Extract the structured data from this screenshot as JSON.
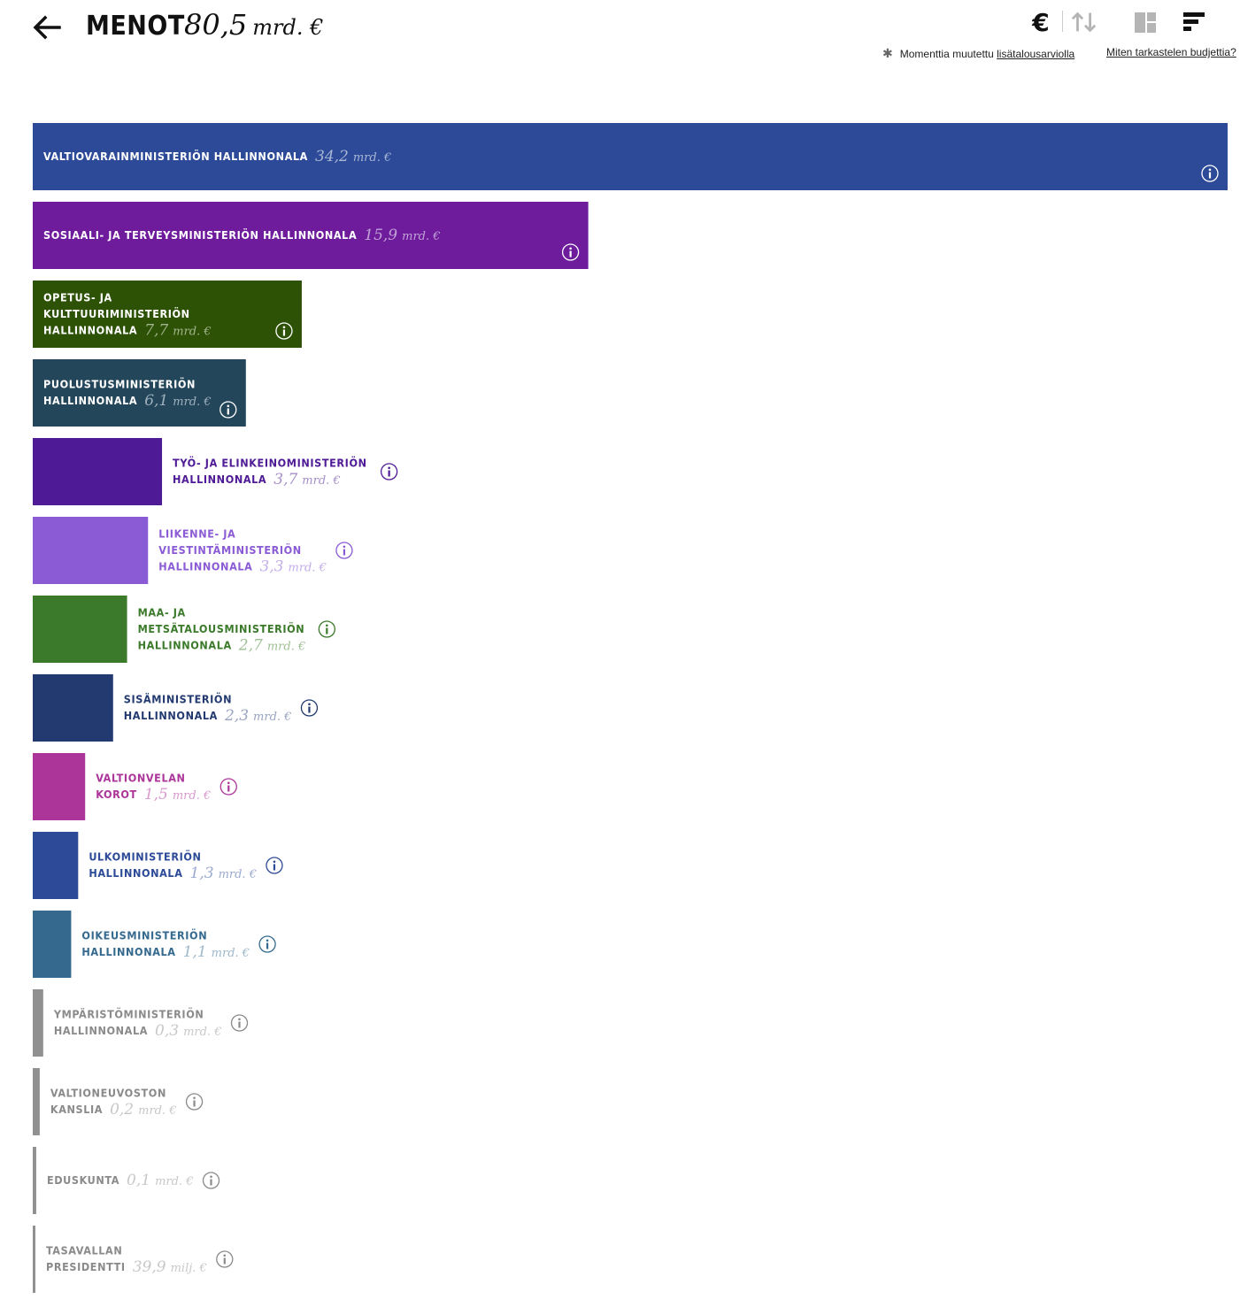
{
  "header": {
    "title": "MENOT",
    "total_value": "80,5",
    "total_unit": "mrd. €",
    "currency_symbol": "€",
    "note_prefix": "Momenttia muutettu",
    "note_link": "lisätalousarviolla",
    "help_link": "Miten tarkastelen budjettia?",
    "icons": [
      "back-arrow-icon",
      "euro-icon",
      "sort-icon",
      "treemap-icon",
      "bar-list-icon"
    ]
  },
  "chart_data": {
    "type": "bar",
    "orientation": "horizontal",
    "unit": "mrd. €",
    "categories": [
      "VALTIOVARAINMINISTERIÖN HALLINNONALA",
      "SOSIAALI- JA TERVEYSMINISTERIÖN HALLINNONALA",
      "OPETUS- JA KULTTUURIMINISTERIÖN HALLINNONALA",
      "PUOLUSTUSMINISTERIÖN HALLINNONALA",
      "TYÖ- JA ELINKEINOMINISTERIÖN HALLINNONALA",
      "LIIKENNE- JA VIESTINTÄMINISTERIÖN HALLINNONALA",
      "MAA- JA METSÄTALOUSMINISTERIÖN HALLINNONALA",
      "SISÄMINISTERIÖN HALLINNONALA",
      "VALTIONVELAN KOROT",
      "ULKOMINISTERIÖN HALLINNONALA",
      "OIKEUSMINISTERIÖN HALLINNONALA",
      "YMPÄRISTÖMINISTERIÖN HALLINNONALA",
      "VALTIONEUVOSTON KANSLIA",
      "EDUSKUNTA",
      "TASAVALLAN PRESIDENTTI"
    ],
    "values": [
      34.2,
      15.9,
      7.7,
      6.1,
      3.7,
      3.3,
      2.7,
      2.3,
      1.5,
      1.3,
      1.1,
      0.3,
      0.2,
      0.1,
      0.0399
    ],
    "bars": [
      {
        "label_lines": [
          "VALTIOVARAINMINISTERIÖN HALLINNONALA"
        ],
        "value_text": "34,2",
        "unit_text": "mrd. €",
        "color": "#2c4a97",
        "text_color": "#ffffff",
        "value_color": "#a9b6d6",
        "label_inside": true
      },
      {
        "label_lines": [
          "SOSIAALI- JA TERVEYSMINISTERIÖN HALLINNONALA"
        ],
        "value_text": "15,9",
        "unit_text": "mrd. €",
        "color": "#6e1b9c",
        "text_color": "#ffffff",
        "value_color": "#c1a3d6",
        "label_inside": true
      },
      {
        "label_lines": [
          "OPETUS- JA",
          "KULTTUURIMINISTERIÖN",
          "HALLINNONALA"
        ],
        "value_text": "7,7",
        "unit_text": "mrd. €",
        "color": "#2d5206",
        "text_color": "#ffffff",
        "value_color": "#a2b58c",
        "label_inside": true
      },
      {
        "label_lines": [
          "PUOLUSTUSMINISTERIÖN",
          "HALLINNONALA"
        ],
        "value_text": "6,1",
        "unit_text": "mrd. €",
        "color": "#23465a",
        "text_color": "#ffffff",
        "value_color": "#9fb0bd",
        "label_inside": true
      },
      {
        "label_lines": [
          "TYÖ- JA ELINKEINOMINISTERIÖN",
          "HALLINNONALA"
        ],
        "value_text": "3,7",
        "unit_text": "mrd. €",
        "color": "#4f1a96",
        "text_color": "#4f1a96",
        "value_color": "#a68fc7",
        "label_inside": false
      },
      {
        "label_lines": [
          "LIIKENNE- JA",
          "VIESTINTÄMINISTERIÖN",
          "HALLINNONALA"
        ],
        "value_text": "3,3",
        "unit_text": "mrd. €",
        "color": "#8b5bd6",
        "text_color": "#8b5bd6",
        "value_color": "#c3aee9",
        "label_inside": false
      },
      {
        "label_lines": [
          "MAA- JA",
          "METSÄTALOUSMINISTERIÖN",
          "HALLINNONALA"
        ],
        "value_text": "2,7",
        "unit_text": "mrd. €",
        "color": "#3b7a2a",
        "text_color": "#3b7a2a",
        "value_color": "#9fc096",
        "label_inside": false
      },
      {
        "label_lines": [
          "SISÄMINISTERIÖN",
          "HALLINNONALA"
        ],
        "value_text": "2,3",
        "unit_text": "mrd. €",
        "color": "#233a70",
        "text_color": "#233a70",
        "value_color": "#9aa5c0",
        "label_inside": false
      },
      {
        "label_lines": [
          "VALTIONVELAN",
          "KOROT"
        ],
        "value_text": "1,5",
        "unit_text": "mrd. €",
        "color": "#ab3599",
        "text_color": "#ab3599",
        "value_color": "#d99acd",
        "label_inside": false
      },
      {
        "label_lines": [
          "ULKOMINISTERIÖN",
          "HALLINNONALA"
        ],
        "value_text": "1,3",
        "unit_text": "mrd. €",
        "color": "#2c4a97",
        "text_color": "#2c4a97",
        "value_color": "#9aaad0",
        "label_inside": false
      },
      {
        "label_lines": [
          "OIKEUSMINISTERIÖN",
          "HALLINNONALA"
        ],
        "value_text": "1,1",
        "unit_text": "mrd. €",
        "color": "#356a8e",
        "text_color": "#356a8e",
        "value_color": "#9db8ca",
        "label_inside": false
      },
      {
        "label_lines": [
          "YMPÄRISTÖMINISTERIÖN",
          "HALLINNONALA"
        ],
        "value_text": "0,3",
        "unit_text": "mrd. €",
        "color": "#909090",
        "text_color": "#8a8a8a",
        "value_color": "#c8c8c8",
        "label_inside": false
      },
      {
        "label_lines": [
          "VALTIONEUVOSTON",
          "KANSLIA"
        ],
        "value_text": "0,2",
        "unit_text": "mrd. €",
        "color": "#909090",
        "text_color": "#8a8a8a",
        "value_color": "#c8c8c8",
        "label_inside": false
      },
      {
        "label_lines": [
          "EDUSKUNTA"
        ],
        "value_text": "0,1",
        "unit_text": "mrd. €",
        "color": "#909090",
        "text_color": "#8a8a8a",
        "value_color": "#c8c8c8",
        "label_inside": false
      },
      {
        "label_lines": [
          "TASAVALLAN",
          "PRESIDENTTI"
        ],
        "value_text": "39,9",
        "unit_text": "milj. €",
        "color": "#909090",
        "text_color": "#8a8a8a",
        "value_color": "#c8c8c8",
        "label_inside": false
      }
    ]
  }
}
